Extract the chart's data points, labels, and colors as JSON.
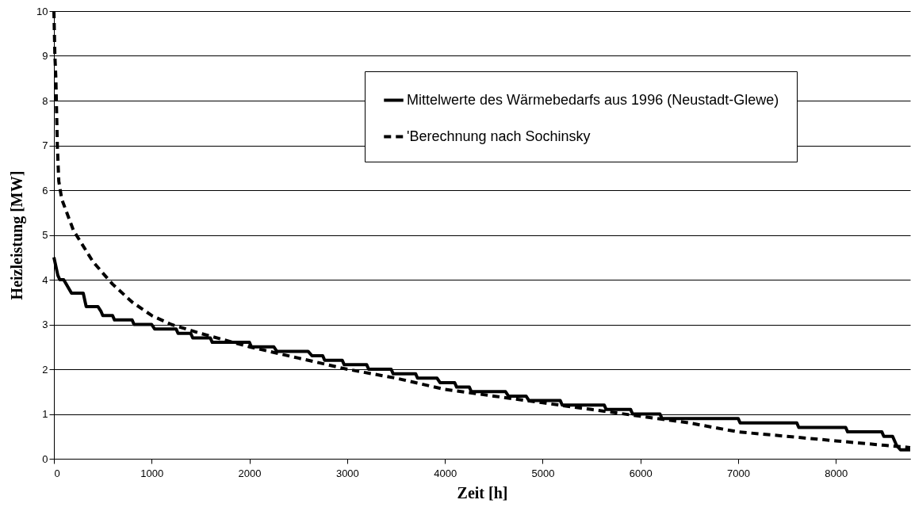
{
  "chart_data": {
    "type": "line",
    "xlabel": "Zeit   [h]",
    "ylabel": "Heizleistung [MW]",
    "xlim": [
      0,
      8760
    ],
    "xticks": [
      0,
      1000,
      2000,
      3000,
      4000,
      5000,
      6000,
      7000,
      8000
    ],
    "ylim": [
      0,
      10
    ],
    "yticks": [
      0,
      1,
      2,
      3,
      4,
      5,
      6,
      7,
      8,
      9,
      10
    ],
    "grid": "y",
    "legend": "top right",
    "series": [
      {
        "name": "Mittelwerte des Wärmebedarfs aus 1996 (Neustadt-Glewe)",
        "color": "#000000",
        "line_style": "solid",
        "x": [
          0,
          40,
          60,
          100,
          180,
          300,
          330,
          450,
          480,
          500,
          600,
          620,
          800,
          820,
          1000,
          1030,
          1250,
          1270,
          1400,
          1420,
          1600,
          1620,
          2000,
          2020,
          2250,
          2280,
          2600,
          2640,
          2750,
          2770,
          2950,
          2970,
          3200,
          3220,
          3450,
          3470,
          3700,
          3720,
          3920,
          3950,
          4100,
          4120,
          4250,
          4270,
          4620,
          4650,
          4830,
          4860,
          5180,
          5200,
          5630,
          5650,
          5900,
          5920,
          6200,
          6220,
          7000,
          7020,
          7600,
          7620,
          8100,
          8120,
          8470,
          8490,
          8580,
          8620,
          8660,
          8760
        ],
        "values": [
          4.5,
          4.1,
          4.0,
          4.0,
          3.7,
          3.7,
          3.4,
          3.4,
          3.3,
          3.2,
          3.2,
          3.1,
          3.1,
          3.0,
          3.0,
          2.9,
          2.9,
          2.8,
          2.8,
          2.7,
          2.7,
          2.6,
          2.6,
          2.5,
          2.5,
          2.4,
          2.4,
          2.3,
          2.3,
          2.2,
          2.2,
          2.1,
          2.1,
          2.0,
          2.0,
          1.9,
          1.9,
          1.8,
          1.8,
          1.7,
          1.7,
          1.6,
          1.6,
          1.5,
          1.5,
          1.4,
          1.4,
          1.3,
          1.3,
          1.2,
          1.2,
          1.1,
          1.1,
          1.0,
          1.0,
          0.9,
          0.9,
          0.8,
          0.8,
          0.7,
          0.7,
          0.6,
          0.6,
          0.5,
          0.5,
          0.3,
          0.2,
          0.2
        ]
      },
      {
        "name": "'Berechnung nach Sochinsky",
        "color": "#000000",
        "line_style": "dashed",
        "x": [
          0,
          10,
          20,
          35,
          50,
          80,
          200,
          400,
          600,
          800,
          1000,
          1200,
          1500,
          2000,
          2500,
          3000,
          3500,
          4000,
          4500,
          5000,
          5500,
          6000,
          6500,
          7000,
          7500,
          8000,
          8500,
          8760
        ],
        "values": [
          10,
          9,
          8.5,
          7,
          6.2,
          5.8,
          5.1,
          4.4,
          3.9,
          3.5,
          3.2,
          3.0,
          2.8,
          2.5,
          2.25,
          2.0,
          1.8,
          1.55,
          1.4,
          1.25,
          1.1,
          0.95,
          0.8,
          0.6,
          0.5,
          0.4,
          0.3,
          0.25
        ]
      }
    ]
  }
}
